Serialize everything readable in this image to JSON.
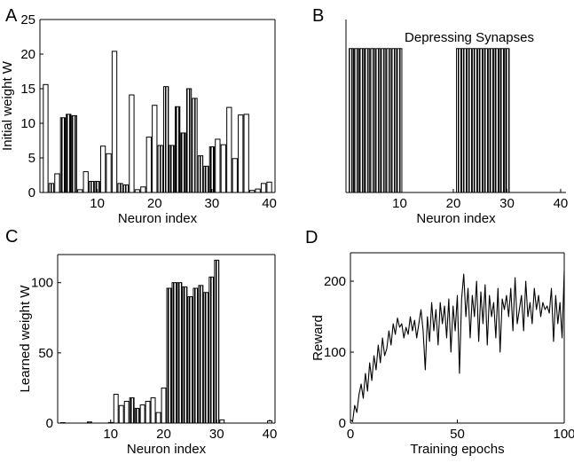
{
  "chart_data": [
    {
      "panel": "A",
      "type": "bar",
      "xlabel": "Neuron index",
      "ylabel": "Initial weight W",
      "xlim": [
        0,
        41
      ],
      "ylim": [
        0,
        25
      ],
      "xticks": [
        10,
        20,
        30,
        40
      ],
      "yticks": [
        0,
        5,
        10,
        15,
        20,
        25
      ],
      "x": [
        1,
        2,
        3,
        4,
        5,
        6,
        7,
        8,
        9,
        10,
        11,
        12,
        13,
        14,
        15,
        16,
        17,
        18,
        19,
        20,
        21,
        22,
        23,
        24,
        25,
        26,
        27,
        28,
        29,
        30,
        31,
        32,
        33,
        34,
        35,
        36,
        37,
        38,
        39,
        40
      ],
      "values": [
        15.6,
        1.3,
        2.7,
        10.8,
        11.3,
        11.1,
        0.4,
        3.0,
        1.6,
        1.6,
        6.7,
        5.6,
        20.4,
        1.3,
        1.1,
        14.1,
        0.4,
        0.8,
        8.0,
        12.6,
        6.8,
        15.3,
        6.8,
        12.4,
        8.6,
        15.0,
        13.6,
        5.3,
        3.8,
        6.6,
        7.7,
        6.9,
        12.3,
        4.9,
        11.2,
        11.3,
        0.3,
        0.5,
        1.3,
        1.5
      ],
      "striped": [
        false,
        true,
        false,
        true,
        true,
        true,
        false,
        false,
        true,
        true,
        false,
        false,
        false,
        true,
        true,
        false,
        false,
        false,
        false,
        false,
        true,
        true,
        true,
        true,
        true,
        true,
        true,
        true,
        true,
        true,
        false,
        false,
        false,
        false,
        false,
        false,
        false,
        false,
        false,
        false
      ]
    },
    {
      "panel": "B",
      "type": "bar",
      "title": "Depressing Synapses",
      "xlabel": "Neuron index",
      "xlim": [
        0,
        41
      ],
      "ylim": [
        0,
        25
      ],
      "xticks": [
        10,
        20,
        30,
        40
      ],
      "x": [
        1,
        2,
        3,
        4,
        5,
        6,
        7,
        8,
        9,
        10,
        21,
        22,
        23,
        24,
        25,
        26,
        27,
        28,
        29,
        30
      ],
      "values": [
        20.8,
        20.8,
        20.8,
        20.8,
        20.8,
        20.8,
        20.8,
        20.8,
        20.8,
        20.8,
        20.8,
        20.8,
        20.8,
        20.8,
        20.8,
        20.8,
        20.8,
        20.8,
        20.8,
        20.8
      ]
    },
    {
      "panel": "C",
      "type": "bar",
      "xlabel": "Neuron index",
      "ylabel": "Learned weight W",
      "xlim": [
        0,
        41
      ],
      "ylim": [
        0,
        120
      ],
      "xticks": [
        10,
        20,
        30,
        40
      ],
      "yticks": [
        0,
        50,
        100
      ],
      "x": [
        1,
        2,
        3,
        4,
        5,
        6,
        7,
        8,
        9,
        10,
        11,
        12,
        13,
        14,
        15,
        16,
        17,
        18,
        19,
        20,
        21,
        22,
        23,
        24,
        25,
        26,
        27,
        28,
        29,
        30,
        31,
        32,
        33,
        34,
        35,
        36,
        37,
        38,
        39,
        40
      ],
      "values": [
        0.3,
        0,
        0,
        0,
        0,
        0.8,
        0,
        0,
        0,
        0.4,
        20.5,
        12.5,
        15.5,
        18.0,
        10.5,
        13.0,
        15.5,
        18.0,
        7.5,
        25.0,
        96,
        100,
        100,
        97,
        90,
        96,
        98,
        93,
        104,
        116,
        2.3,
        0,
        0,
        0,
        0,
        0,
        0,
        0,
        0,
        1.5
      ],
      "striped": [
        false,
        true,
        false,
        true,
        true,
        true,
        false,
        false,
        true,
        true,
        false,
        false,
        false,
        true,
        true,
        false,
        false,
        false,
        false,
        false,
        true,
        true,
        true,
        true,
        true,
        true,
        true,
        true,
        true,
        true,
        false,
        false,
        false,
        false,
        false,
        false,
        false,
        false,
        false,
        false
      ]
    },
    {
      "panel": "D",
      "type": "line",
      "xlabel": "Training epochs",
      "ylabel": "Reward",
      "xlim": [
        0,
        100
      ],
      "ylim": [
        0,
        240
      ],
      "xticks": [
        0,
        50,
        100
      ],
      "yticks": [
        0,
        100,
        200
      ],
      "x": [
        0,
        1,
        2,
        3,
        4,
        5,
        6,
        7,
        8,
        9,
        10,
        11,
        12,
        13,
        14,
        15,
        16,
        17,
        18,
        19,
        20,
        21,
        22,
        23,
        24,
        25,
        26,
        27,
        28,
        29,
        30,
        31,
        32,
        33,
        34,
        35,
        36,
        37,
        38,
        39,
        40,
        41,
        42,
        43,
        44,
        45,
        46,
        47,
        48,
        49,
        50,
        51,
        52,
        53,
        54,
        55,
        56,
        57,
        58,
        59,
        60,
        61,
        62,
        63,
        64,
        65,
        66,
        67,
        68,
        69,
        70,
        71,
        72,
        73,
        74,
        75,
        76,
        77,
        78,
        79,
        80,
        81,
        82,
        83,
        84,
        85,
        86,
        87,
        88,
        89,
        90,
        91,
        92,
        93,
        94,
        95,
        96,
        97,
        98,
        99,
        100
      ],
      "y": [
        5,
        2,
        25,
        15,
        40,
        55,
        35,
        70,
        45,
        85,
        60,
        95,
        75,
        110,
        85,
        120,
        95,
        105,
        130,
        110,
        140,
        125,
        148,
        135,
        140,
        120,
        135,
        125,
        150,
        130,
        145,
        120,
        140,
        160,
        130,
        75,
        150,
        115,
        170,
        130,
        160,
        110,
        170,
        140,
        165,
        120,
        175,
        100,
        165,
        130,
        180,
        70,
        175,
        210,
        150,
        190,
        120,
        180,
        150,
        200,
        115,
        185,
        140,
        195,
        110,
        180,
        150,
        170,
        120,
        190,
        100,
        175,
        160,
        180,
        150,
        190,
        130,
        205,
        140,
        160,
        180,
        130,
        200,
        150,
        170,
        140,
        190,
        160,
        180,
        150,
        170,
        160,
        165,
        155,
        190,
        115,
        180,
        140,
        170,
        120,
        215
      ]
    }
  ],
  "labels": {
    "panel_a": "A",
    "panel_b": "B",
    "panel_c": "C",
    "panel_d": "D"
  }
}
